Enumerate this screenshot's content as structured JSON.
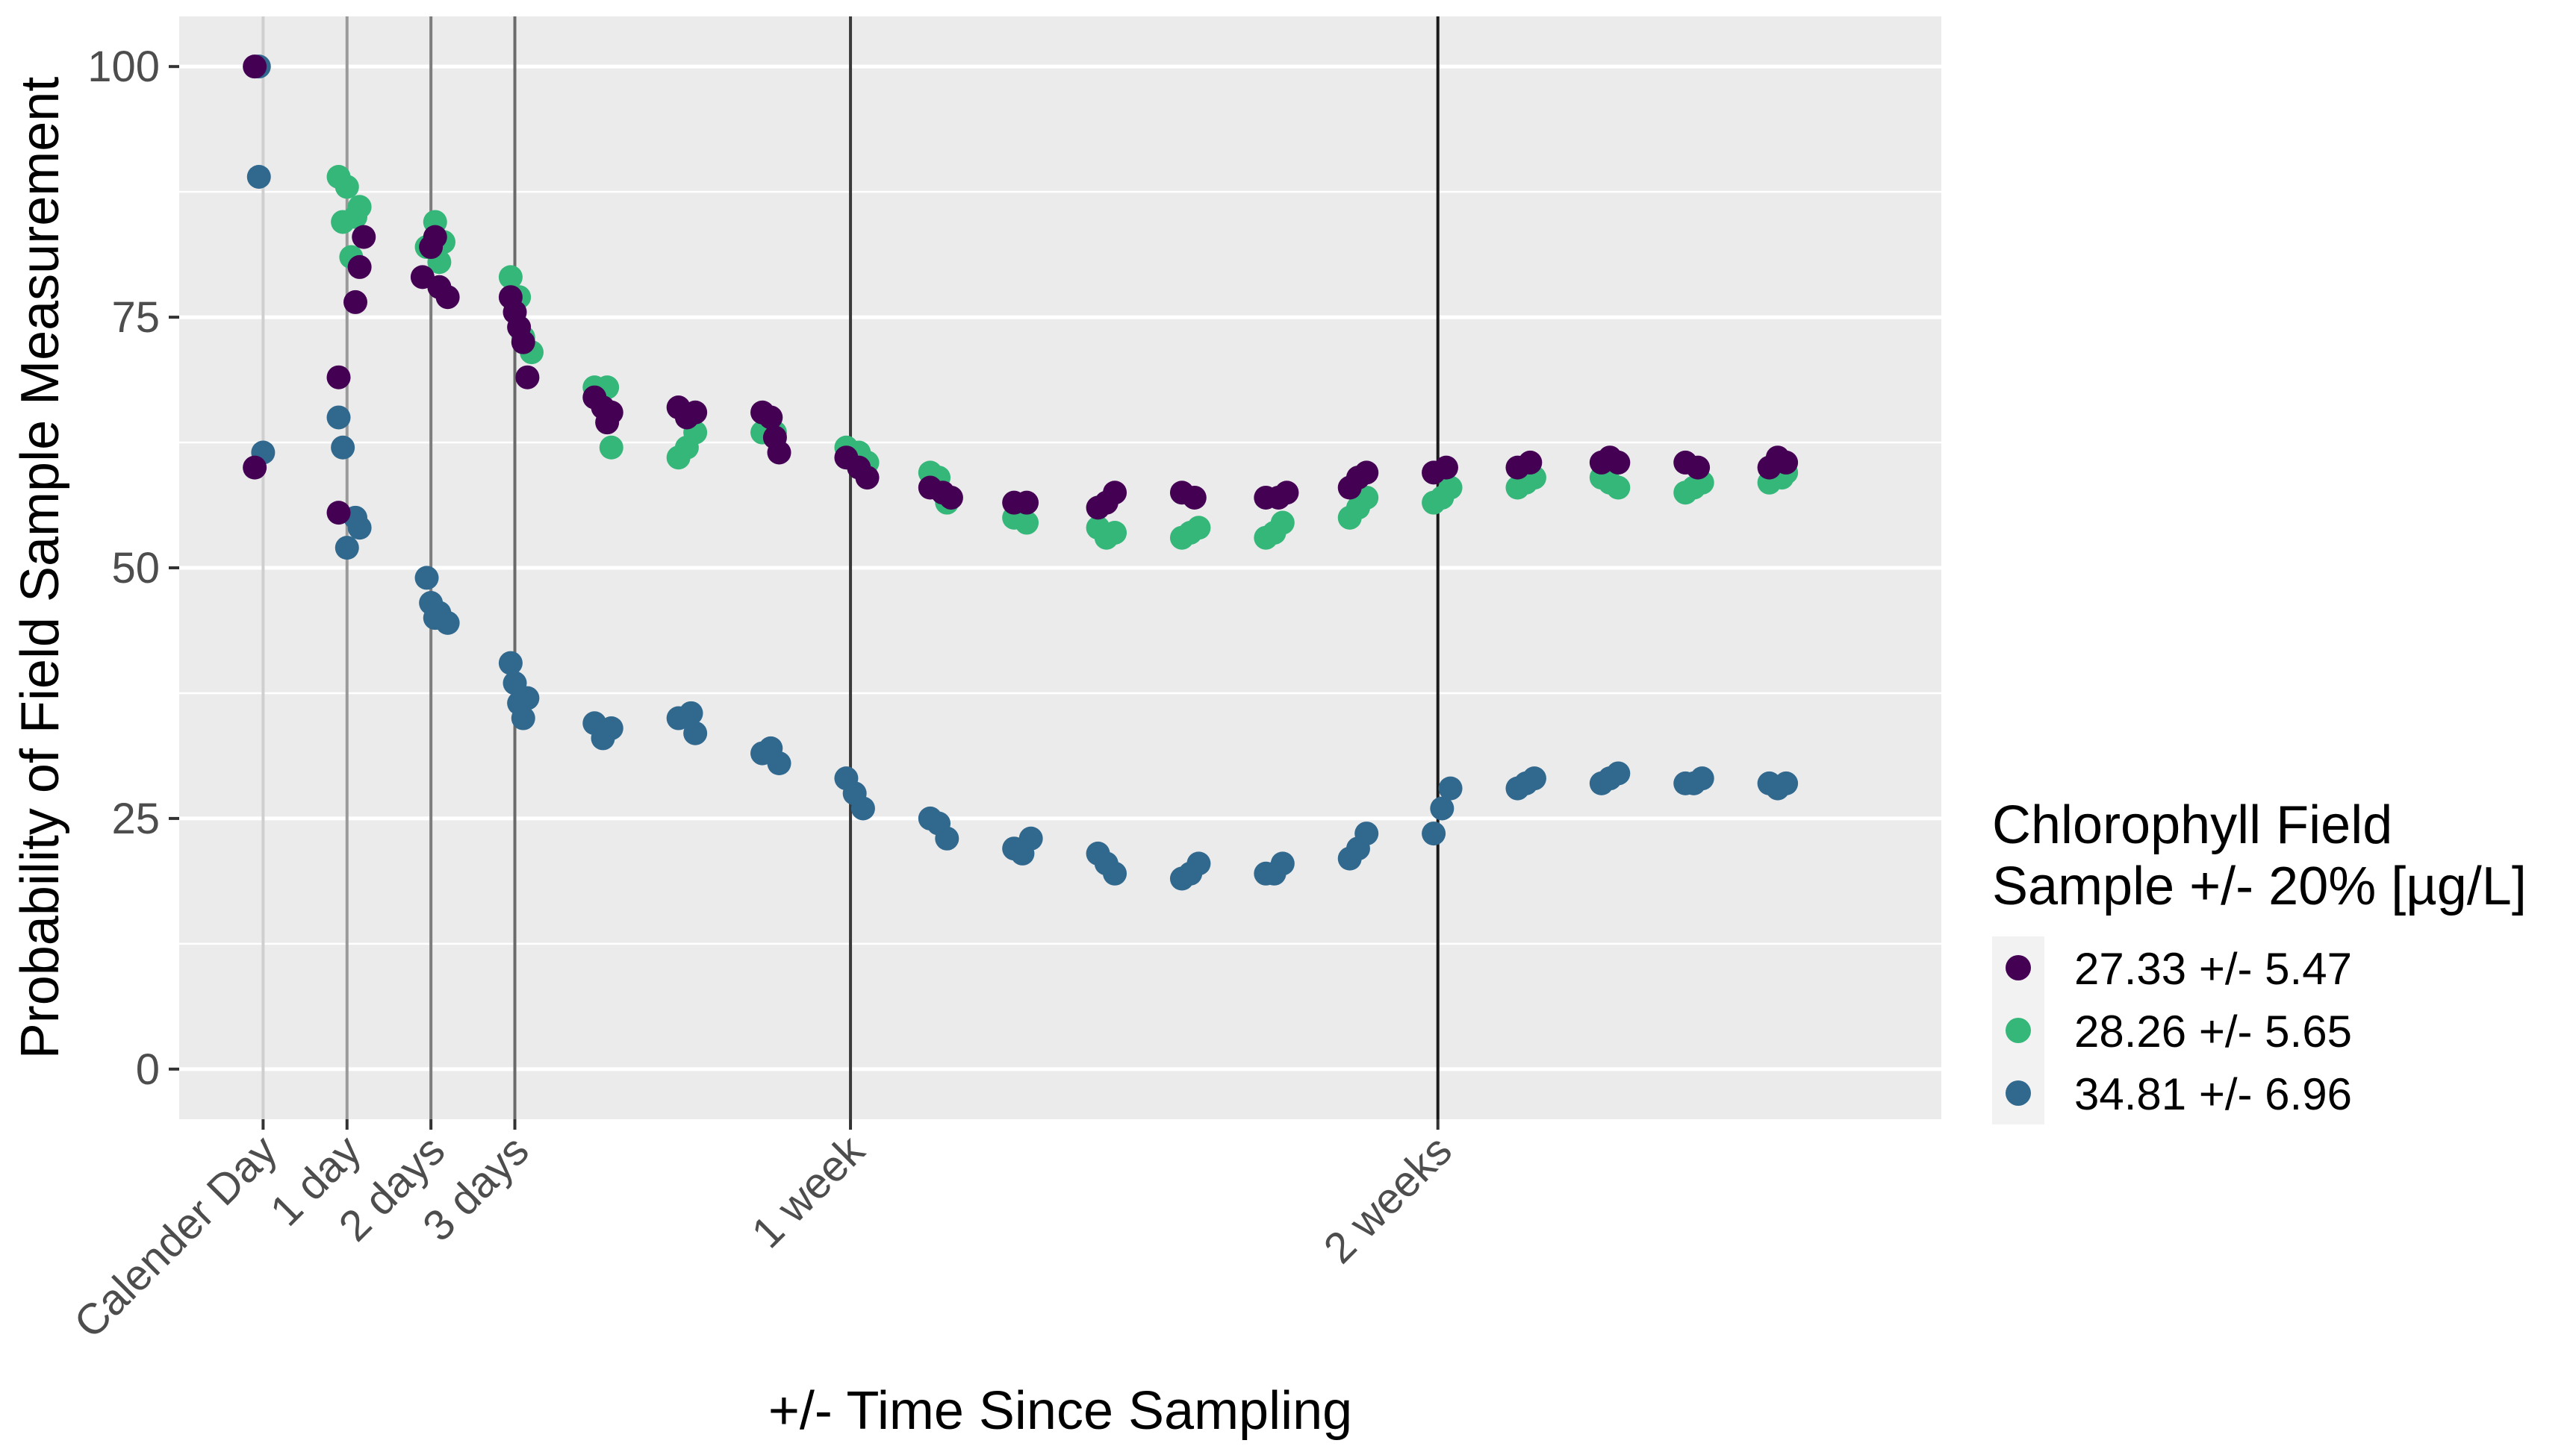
{
  "chart_data": {
    "type": "scatter",
    "title": "",
    "xlabel": "+/- Time Since Sampling",
    "ylabel": "Probability of Field Sample Measurement",
    "ylim": [
      -5,
      105
    ],
    "xlim": [
      -1,
      20
    ],
    "y_ticks": [
      0,
      25,
      50,
      75,
      100
    ],
    "x_ticks": [
      {
        "value": 0,
        "label": "Calender Day"
      },
      {
        "value": 1,
        "label": "1 day"
      },
      {
        "value": 2,
        "label": "2 days"
      },
      {
        "value": 3,
        "label": "3 days"
      },
      {
        "value": 7,
        "label": "1 week"
      },
      {
        "value": 14,
        "label": "2 weeks"
      }
    ],
    "grid": true,
    "vlines": [
      0,
      1,
      2,
      3,
      7,
      14
    ],
    "background": "#ebebeb",
    "legend": {
      "title_lines": [
        "Chlorophyll Field",
        "Sample +/- 20% [µg/L]"
      ],
      "placement": "right"
    },
    "series": [
      {
        "name": "27.33 +/- 5.47",
        "color": "#440154",
        "points": [
          [
            -0.1,
            100
          ],
          [
            -0.1,
            60
          ],
          [
            0.9,
            69
          ],
          [
            0.9,
            55.5
          ],
          [
            1.1,
            76.5
          ],
          [
            1.15,
            80
          ],
          [
            1.2,
            83
          ],
          [
            1.9,
            79
          ],
          [
            2.0,
            82
          ],
          [
            2.05,
            83
          ],
          [
            2.1,
            78
          ],
          [
            2.2,
            77
          ],
          [
            2.95,
            77
          ],
          [
            3.0,
            75.5
          ],
          [
            3.05,
            74
          ],
          [
            3.1,
            72.5
          ],
          [
            3.15,
            69
          ],
          [
            3.95,
            67
          ],
          [
            4.05,
            66
          ],
          [
            4.1,
            64.5
          ],
          [
            4.15,
            65.5
          ],
          [
            4.95,
            66
          ],
          [
            5.05,
            65
          ],
          [
            5.15,
            65.5
          ],
          [
            5.95,
            65.5
          ],
          [
            6.05,
            65
          ],
          [
            6.1,
            63
          ],
          [
            6.15,
            61.5
          ],
          [
            6.95,
            61
          ],
          [
            7.1,
            60
          ],
          [
            7.2,
            59
          ],
          [
            7.95,
            58
          ],
          [
            8.1,
            57.5
          ],
          [
            8.2,
            57
          ],
          [
            8.95,
            56.5
          ],
          [
            9.1,
            56.5
          ],
          [
            9.95,
            56
          ],
          [
            10.05,
            56.5
          ],
          [
            10.15,
            57.5
          ],
          [
            10.95,
            57.5
          ],
          [
            11.1,
            57
          ],
          [
            11.95,
            57
          ],
          [
            12.1,
            57
          ],
          [
            12.2,
            57.5
          ],
          [
            12.95,
            58
          ],
          [
            13.05,
            59
          ],
          [
            13.15,
            59.5
          ],
          [
            13.95,
            59.5
          ],
          [
            14.1,
            60
          ],
          [
            14.95,
            60
          ],
          [
            15.1,
            60.5
          ],
          [
            15.95,
            60.5
          ],
          [
            16.05,
            61
          ],
          [
            16.15,
            60.5
          ],
          [
            16.95,
            60.5
          ],
          [
            17.1,
            60
          ],
          [
            17.95,
            60
          ],
          [
            18.05,
            61
          ],
          [
            18.15,
            60.5
          ]
        ]
      },
      {
        "name": "28.26 +/- 5.65",
        "color": "#35b779",
        "points": [
          [
            0.9,
            89
          ],
          [
            1.0,
            88
          ],
          [
            1.05,
            81
          ],
          [
            1.1,
            85
          ],
          [
            1.15,
            86
          ],
          [
            0.95,
            84.5
          ],
          [
            1.95,
            82
          ],
          [
            2.05,
            84.5
          ],
          [
            2.15,
            82.5
          ],
          [
            2.1,
            80.5
          ],
          [
            2.95,
            79
          ],
          [
            3.05,
            77
          ],
          [
            3.1,
            73
          ],
          [
            3.2,
            71.5
          ],
          [
            3.95,
            68
          ],
          [
            4.1,
            68
          ],
          [
            4.15,
            62
          ],
          [
            4.95,
            61
          ],
          [
            5.05,
            62
          ],
          [
            5.15,
            63.5
          ],
          [
            5.95,
            63.5
          ],
          [
            6.1,
            63.5
          ],
          [
            6.95,
            62
          ],
          [
            7.1,
            61.5
          ],
          [
            7.2,
            60.5
          ],
          [
            7.95,
            59.5
          ],
          [
            8.05,
            59
          ],
          [
            8.15,
            56.5
          ],
          [
            8.95,
            55
          ],
          [
            9.1,
            54.5
          ],
          [
            9.95,
            54
          ],
          [
            10.05,
            53
          ],
          [
            10.15,
            53.5
          ],
          [
            10.95,
            53
          ],
          [
            11.05,
            53.5
          ],
          [
            11.15,
            54
          ],
          [
            11.95,
            53
          ],
          [
            12.05,
            53.5
          ],
          [
            12.15,
            54.5
          ],
          [
            12.95,
            55
          ],
          [
            13.05,
            56
          ],
          [
            13.15,
            57
          ],
          [
            13.95,
            56.5
          ],
          [
            14.05,
            57
          ],
          [
            14.15,
            58
          ],
          [
            14.95,
            58
          ],
          [
            15.05,
            58.5
          ],
          [
            15.15,
            59
          ],
          [
            15.95,
            59
          ],
          [
            16.05,
            58.5
          ],
          [
            16.15,
            58
          ],
          [
            16.95,
            57.5
          ],
          [
            17.05,
            58
          ],
          [
            17.15,
            58.5
          ],
          [
            17.95,
            58.5
          ],
          [
            18.1,
            59
          ],
          [
            18.15,
            59.5
          ]
        ]
      },
      {
        "name": "34.81 +/- 6.96",
        "color": "#31688e",
        "points": [
          [
            -0.05,
            100
          ],
          [
            -0.05,
            89
          ],
          [
            0.0,
            61.5
          ],
          [
            0.9,
            65
          ],
          [
            0.95,
            62
          ],
          [
            1.0,
            52
          ],
          [
            1.1,
            55
          ],
          [
            1.15,
            54
          ],
          [
            1.95,
            49
          ],
          [
            2.0,
            46.5
          ],
          [
            2.05,
            45
          ],
          [
            2.1,
            45.5
          ],
          [
            2.2,
            44.5
          ],
          [
            2.95,
            40.5
          ],
          [
            3.0,
            38.5
          ],
          [
            3.05,
            36.5
          ],
          [
            3.1,
            35
          ],
          [
            3.15,
            37
          ],
          [
            3.95,
            34.5
          ],
          [
            4.05,
            33
          ],
          [
            4.15,
            34
          ],
          [
            4.95,
            35
          ],
          [
            5.1,
            35.5
          ],
          [
            5.15,
            33.5
          ],
          [
            5.95,
            31.5
          ],
          [
            6.05,
            32
          ],
          [
            6.15,
            30.5
          ],
          [
            6.95,
            29
          ],
          [
            7.05,
            27.5
          ],
          [
            7.15,
            26
          ],
          [
            7.95,
            25
          ],
          [
            8.05,
            24.5
          ],
          [
            8.15,
            23
          ],
          [
            8.95,
            22
          ],
          [
            9.05,
            21.5
          ],
          [
            9.15,
            23
          ],
          [
            9.95,
            21.5
          ],
          [
            10.05,
            20.5
          ],
          [
            10.15,
            19.5
          ],
          [
            10.95,
            19
          ],
          [
            11.05,
            19.5
          ],
          [
            11.15,
            20.5
          ],
          [
            11.95,
            19.5
          ],
          [
            12.05,
            19.5
          ],
          [
            12.15,
            20.5
          ],
          [
            12.95,
            21
          ],
          [
            13.05,
            22
          ],
          [
            13.15,
            23.5
          ],
          [
            13.95,
            23.5
          ],
          [
            14.05,
            26
          ],
          [
            14.15,
            28
          ],
          [
            14.95,
            28
          ],
          [
            15.05,
            28.5
          ],
          [
            15.15,
            29
          ],
          [
            15.95,
            28.5
          ],
          [
            16.05,
            29
          ],
          [
            16.15,
            29.5
          ],
          [
            16.95,
            28.5
          ],
          [
            17.05,
            28.5
          ],
          [
            17.15,
            29
          ],
          [
            17.95,
            28.5
          ],
          [
            18.05,
            28
          ],
          [
            18.15,
            28.5
          ]
        ]
      }
    ]
  }
}
